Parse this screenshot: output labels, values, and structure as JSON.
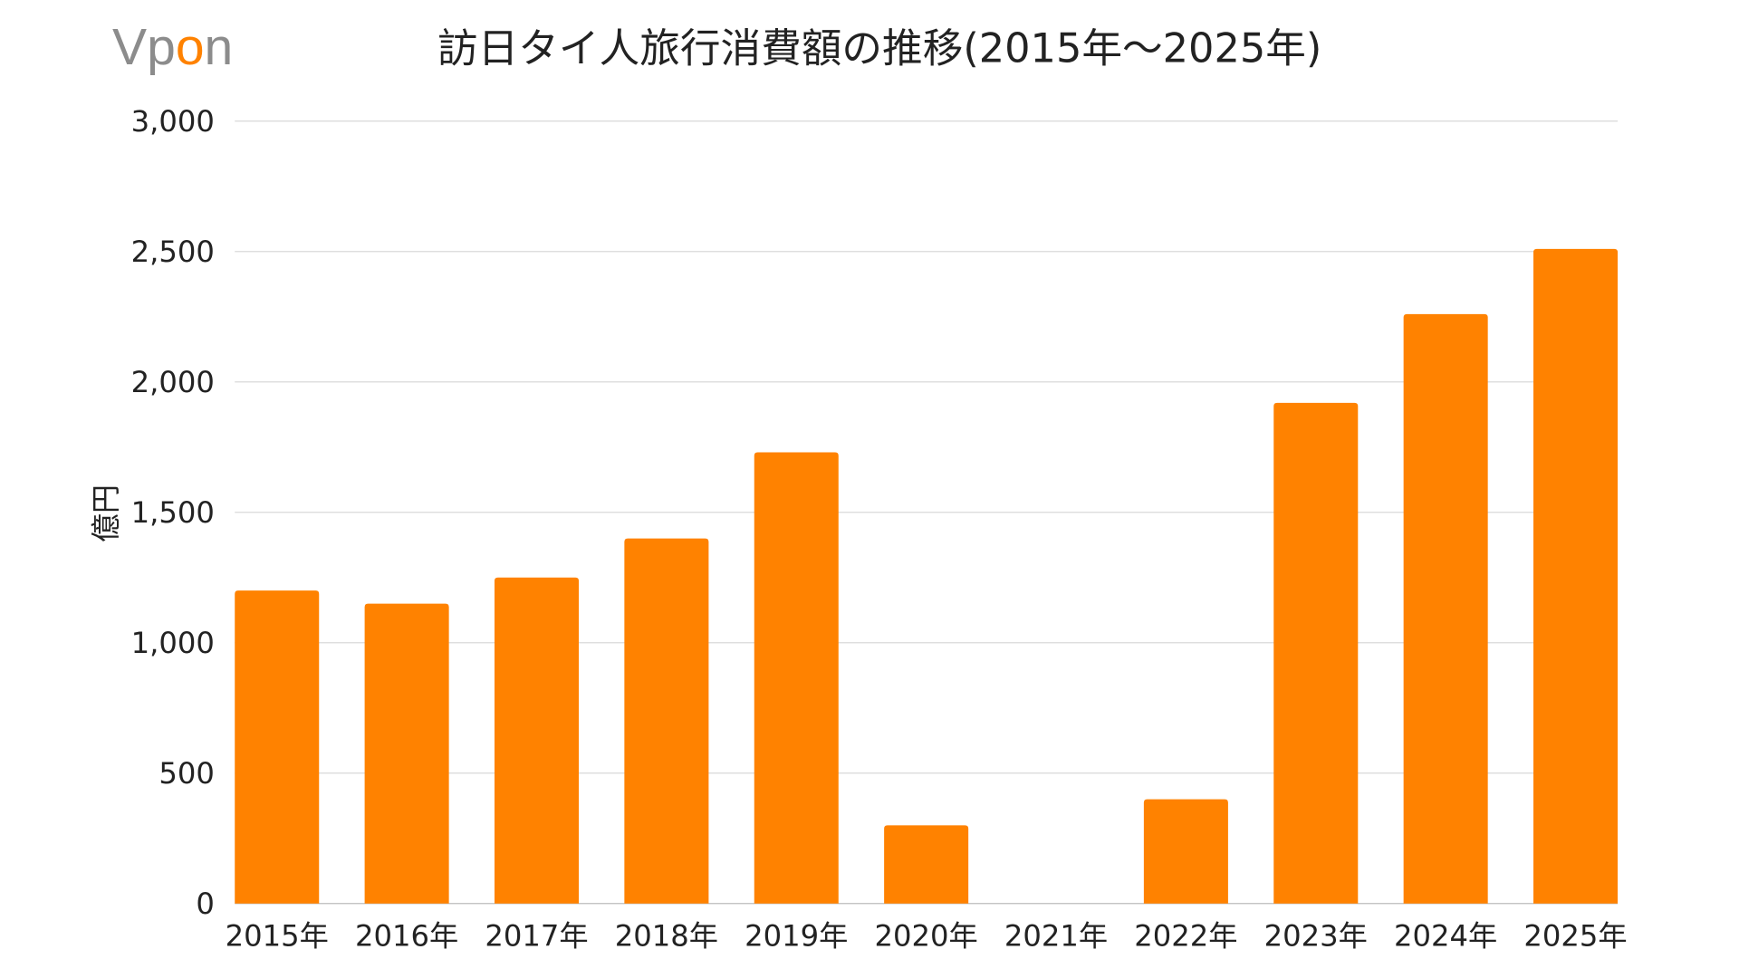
{
  "logo": {
    "text": "Vpon",
    "accent_color": "#FF8200",
    "gray_color": "#8c8c8c"
  },
  "chart_data": {
    "type": "bar",
    "title": "訪日タイ人旅行消費額の推移(2015年～2025年)",
    "xlabel": "",
    "ylabel": "億円",
    "categories": [
      "2015年",
      "2016年",
      "2017年",
      "2018年",
      "2019年",
      "2020年",
      "2021年",
      "2022年",
      "2023年",
      "2024年",
      "2025年"
    ],
    "values": [
      1200,
      1150,
      1250,
      1400,
      1730,
      300,
      0,
      400,
      1920,
      2260,
      2510
    ],
    "ylim": [
      0,
      3000
    ],
    "yticks": [
      0,
      500,
      1000,
      1500,
      2000,
      2500,
      3000
    ],
    "ytick_labels": [
      "0",
      "500",
      "1,000",
      "1,500",
      "2,000",
      "2,500",
      "3,000"
    ],
    "grid": true,
    "legend": "none",
    "bar_color": "#FF8200",
    "grid_color": "#d9d9d9"
  }
}
